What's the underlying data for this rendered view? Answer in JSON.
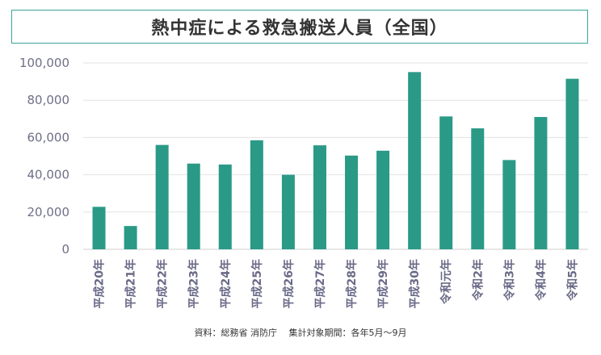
{
  "chart_data": {
    "type": "bar",
    "title": "熱中症による救急搬送人員（全国）",
    "categories": [
      "平成20年",
      "平成21年",
      "平成22年",
      "平成23年",
      "平成24年",
      "平成25年",
      "平成26年",
      "平成27年",
      "平成28年",
      "平成29年",
      "平成30年",
      "令和元年",
      "令和2年",
      "令和3年",
      "令和4年",
      "令和5年"
    ],
    "values": [
      22800,
      12500,
      56000,
      46000,
      45500,
      58500,
      40000,
      55800,
      50300,
      52900,
      95100,
      71300,
      64900,
      47900,
      71000,
      91500
    ],
    "ylim": [
      0,
      100000
    ],
    "yticks": [
      0,
      20000,
      40000,
      60000,
      80000,
      100000
    ],
    "ytick_labels": [
      "0",
      "20,000",
      "40,000",
      "60,000",
      "80,000",
      "100,000"
    ],
    "bar_color": "#2a9a86",
    "grid": true,
    "xlabel": "",
    "ylabel": ""
  },
  "source": "資料：総務省 消防庁　 集計対象期間：各年5月～9月"
}
